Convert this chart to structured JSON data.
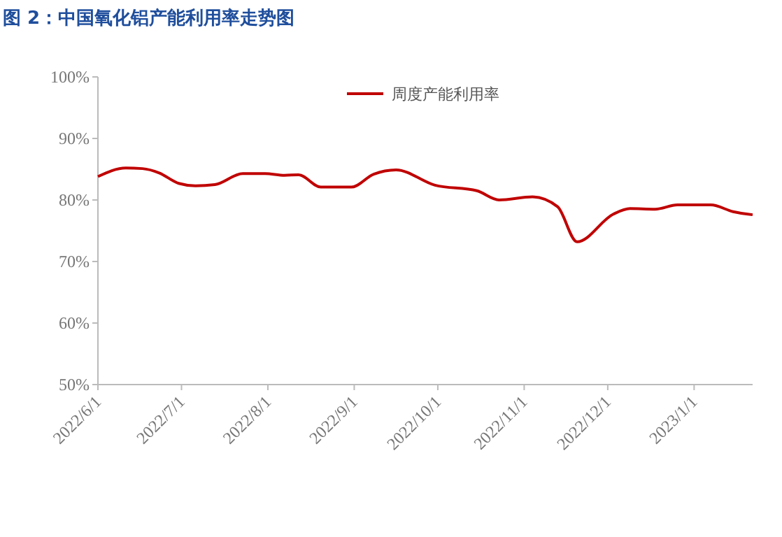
{
  "chart_data": {
    "type": "line",
    "title": "图 2：中国氧化铝产能利用率走势图",
    "x": [
      "2022-06-01",
      "2022-06-11",
      "2022-06-17",
      "2022-06-23",
      "2022-06-30",
      "2022-07-06",
      "2022-07-13",
      "2022-07-23",
      "2022-07-31",
      "2022-08-07",
      "2022-08-12",
      "2022-08-20",
      "2022-08-31",
      "2022-09-08",
      "2022-09-16",
      "2022-09-30",
      "2022-10-15",
      "2022-10-23",
      "2022-11-04",
      "2022-11-13",
      "2022-11-20",
      "2022-12-03",
      "2022-12-09",
      "2022-12-18",
      "2022-12-26",
      "2023-01-07",
      "2023-01-15",
      "2023-01-22"
    ],
    "series": [
      {
        "name": "周度产能利用率",
        "color": "#c00000",
        "values": [
          83.8,
          85.2,
          85.1,
          84.4,
          82.7,
          82.3,
          82.5,
          84.3,
          84.3,
          84.0,
          84.1,
          82.1,
          82.1,
          84.2,
          84.9,
          82.4,
          81.5,
          80.0,
          80.5,
          78.9,
          73.2,
          77.7,
          78.6,
          78.5,
          79.2,
          79.2,
          78.1,
          77.6
        ]
      }
    ],
    "xlim": [
      "2022-06-01",
      "2023-01-22"
    ],
    "xticks": [
      {
        "value": "2022-06-01",
        "label": "2022/6/1"
      },
      {
        "value": "2022-07-01",
        "label": "2022/7/1"
      },
      {
        "value": "2022-08-01",
        "label": "2022/8/1"
      },
      {
        "value": "2022-09-01",
        "label": "2022/9/1"
      },
      {
        "value": "2022-10-01",
        "label": "2022/10/1"
      },
      {
        "value": "2022-11-01",
        "label": "2022/11/1"
      },
      {
        "value": "2022-12-01",
        "label": "2022/12/1"
      },
      {
        "value": "2023-01-01",
        "label": "2023/1/1"
      }
    ],
    "ylim": [
      50,
      100
    ],
    "yticks": [
      {
        "value": 50,
        "label": "50%"
      },
      {
        "value": 60,
        "label": "60%"
      },
      {
        "value": 70,
        "label": "70%"
      },
      {
        "value": 80,
        "label": "80%"
      },
      {
        "value": 90,
        "label": "90%"
      },
      {
        "value": 100,
        "label": "100%"
      }
    ],
    "legend": "top",
    "grid": false,
    "marker": "none",
    "line_style": "solid"
  }
}
